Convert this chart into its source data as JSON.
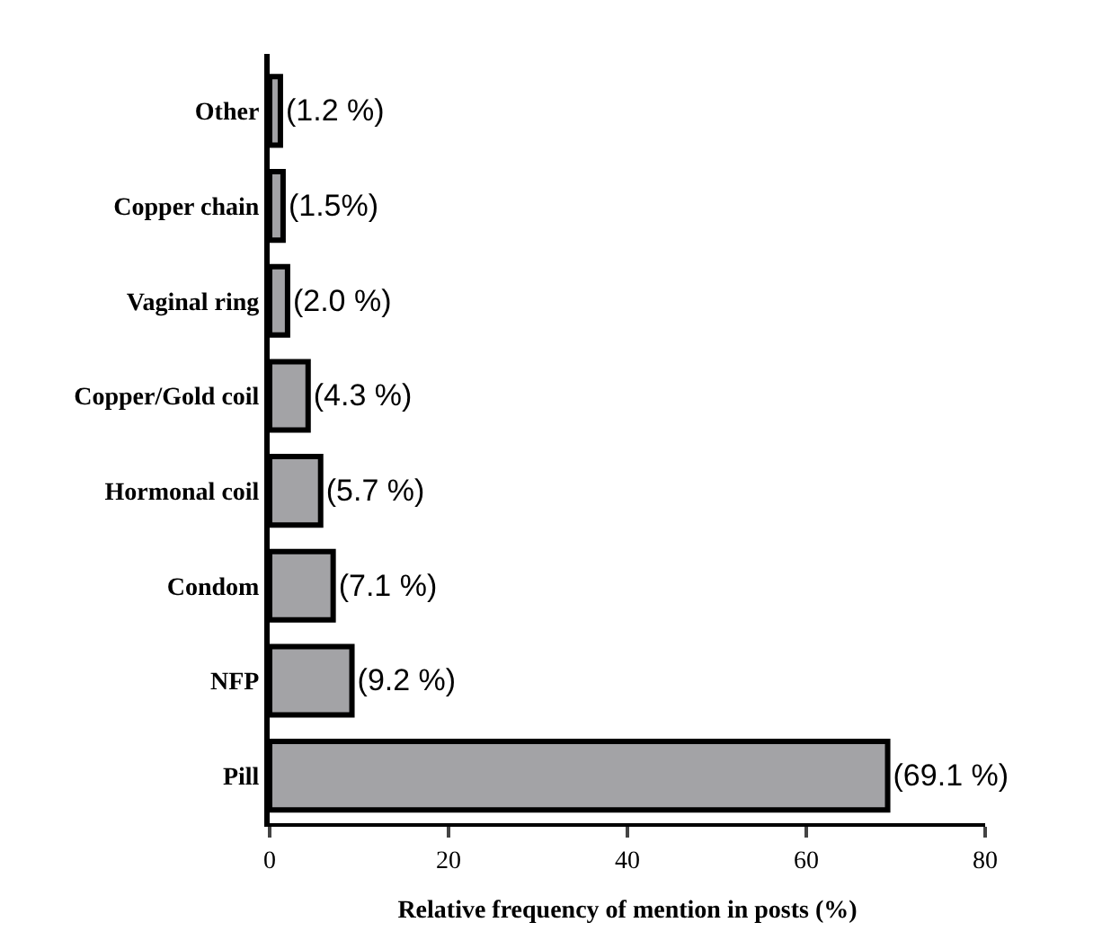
{
  "chart_data": {
    "type": "bar",
    "orientation": "horizontal",
    "xlabel": "Relative frequency of mention in posts (%)",
    "categories": [
      "Other",
      "Copper chain",
      "Vaginal ring",
      "Copper/Gold coil",
      "Hormonal coil",
      "Condom",
      "NFP",
      "Pill"
    ],
    "values": [
      1.2,
      1.5,
      2.0,
      4.3,
      5.7,
      7.1,
      9.2,
      69.1
    ],
    "value_labels": [
      "(1.2 %)",
      "(1.5%)",
      "(2.0 %)",
      "(4.3 %)",
      "(5.7 %)",
      "(7.1 %)",
      "(9.2 %)",
      "(69.1 %)"
    ],
    "color": "#a3a3a6",
    "xlim": [
      0,
      80
    ],
    "xticks": [
      0,
      20,
      40,
      60,
      80
    ]
  }
}
